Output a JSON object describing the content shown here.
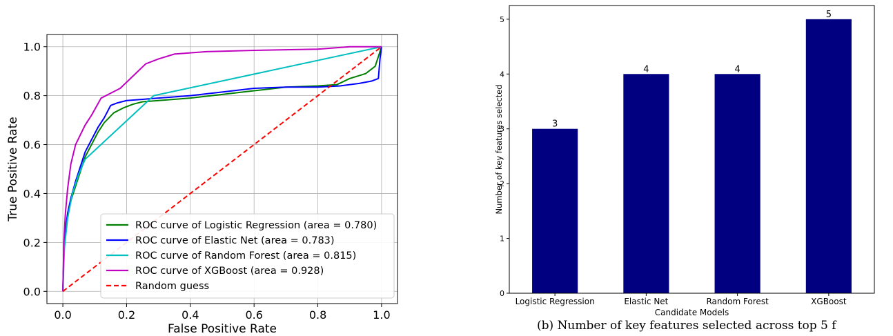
{
  "caption": "(b) Number of key features selected across top 5 f",
  "chart_data": [
    {
      "type": "line",
      "title": "",
      "xlabel": "False Positive Rate",
      "ylabel": "True Positive Rate",
      "xlim": [
        -0.05,
        1.05
      ],
      "ylim": [
        -0.05,
        1.05
      ],
      "xticks": [
        0.0,
        0.2,
        0.4,
        0.6,
        0.8,
        1.0
      ],
      "yticks": [
        0.0,
        0.2,
        0.4,
        0.6,
        0.8,
        1.0
      ],
      "tick_format": 1,
      "grid": true,
      "legend_position": "lower-right",
      "series": [
        {
          "name": "ROC curve of Logistic Regression (area = 0.780)",
          "color": "#008000",
          "dashed": false,
          "points": [
            [
              0,
              0
            ],
            [
              0.003,
              0.15
            ],
            [
              0.008,
              0.24
            ],
            [
              0.015,
              0.31
            ],
            [
              0.025,
              0.37
            ],
            [
              0.04,
              0.43
            ],
            [
              0.055,
              0.49
            ],
            [
              0.07,
              0.55
            ],
            [
              0.09,
              0.6
            ],
            [
              0.11,
              0.65
            ],
            [
              0.13,
              0.69
            ],
            [
              0.16,
              0.73
            ],
            [
              0.19,
              0.75
            ],
            [
              0.22,
              0.765
            ],
            [
              0.25,
              0.775
            ],
            [
              0.3,
              0.78
            ],
            [
              0.4,
              0.79
            ],
            [
              0.5,
              0.805
            ],
            [
              0.6,
              0.82
            ],
            [
              0.7,
              0.835
            ],
            [
              0.8,
              0.84
            ],
            [
              0.86,
              0.845
            ],
            [
              0.9,
              0.87
            ],
            [
              0.95,
              0.89
            ],
            [
              0.98,
              0.92
            ],
            [
              0.99,
              0.96
            ],
            [
              1.0,
              1.0
            ]
          ]
        },
        {
          "name": "ROC curve of Elastic Net (area = 0.783)",
          "color": "#0000ff",
          "dashed": false,
          "points": [
            [
              0,
              0
            ],
            [
              0.003,
              0.16
            ],
            [
              0.008,
              0.25
            ],
            [
              0.015,
              0.32
            ],
            [
              0.025,
              0.38
            ],
            [
              0.04,
              0.45
            ],
            [
              0.055,
              0.51
            ],
            [
              0.07,
              0.57
            ],
            [
              0.09,
              0.62
            ],
            [
              0.11,
              0.67
            ],
            [
              0.13,
              0.71
            ],
            [
              0.15,
              0.76
            ],
            [
              0.17,
              0.77
            ],
            [
              0.2,
              0.78
            ],
            [
              0.25,
              0.785
            ],
            [
              0.3,
              0.79
            ],
            [
              0.4,
              0.8
            ],
            [
              0.5,
              0.815
            ],
            [
              0.6,
              0.83
            ],
            [
              0.7,
              0.835
            ],
            [
              0.8,
              0.835
            ],
            [
              0.87,
              0.84
            ],
            [
              0.93,
              0.85
            ],
            [
              0.97,
              0.86
            ],
            [
              0.99,
              0.87
            ],
            [
              0.995,
              0.95
            ],
            [
              1.0,
              1.0
            ]
          ]
        },
        {
          "name": "ROC curve of Random Forest (area = 0.815)",
          "color": "#00bfbf",
          "dashed": false,
          "points": [
            [
              0,
              0
            ],
            [
              0.005,
              0.18
            ],
            [
              0.015,
              0.3
            ],
            [
              0.03,
              0.4
            ],
            [
              0.05,
              0.48
            ],
            [
              0.07,
              0.54
            ],
            [
              0.285,
              0.8
            ],
            [
              1.0,
              1.0
            ]
          ]
        },
        {
          "name": "ROC curve of XGBoost (area = 0.928)",
          "color": "#bf00bf",
          "dashed": false,
          "points": [
            [
              0,
              0
            ],
            [
              0.003,
              0.2
            ],
            [
              0.008,
              0.32
            ],
            [
              0.015,
              0.42
            ],
            [
              0.025,
              0.52
            ],
            [
              0.04,
              0.6
            ],
            [
              0.055,
              0.64
            ],
            [
              0.07,
              0.68
            ],
            [
              0.09,
              0.72
            ],
            [
              0.12,
              0.79
            ],
            [
              0.15,
              0.81
            ],
            [
              0.18,
              0.83
            ],
            [
              0.22,
              0.88
            ],
            [
              0.26,
              0.93
            ],
            [
              0.3,
              0.95
            ],
            [
              0.35,
              0.97
            ],
            [
              0.45,
              0.98
            ],
            [
              0.6,
              0.985
            ],
            [
              0.8,
              0.99
            ],
            [
              0.9,
              1.0
            ],
            [
              1.0,
              1.0
            ]
          ]
        },
        {
          "name": "Random guess",
          "color": "#ff0000",
          "dashed": true,
          "points": [
            [
              0,
              0
            ],
            [
              1,
              1
            ]
          ]
        }
      ]
    },
    {
      "type": "bar",
      "title": "",
      "xlabel": "Candidate Models",
      "ylabel": "Number of key features selected",
      "categories": [
        "Logistic Regression",
        "Elastic Net",
        "Random Forest",
        "XGBoost"
      ],
      "values": [
        3,
        4,
        4,
        5
      ],
      "ylim": [
        0,
        5.25
      ],
      "yticks": [
        0,
        1,
        2,
        3,
        4,
        5
      ],
      "bar_color": "#000080",
      "data_labels": true,
      "grid": false
    }
  ]
}
